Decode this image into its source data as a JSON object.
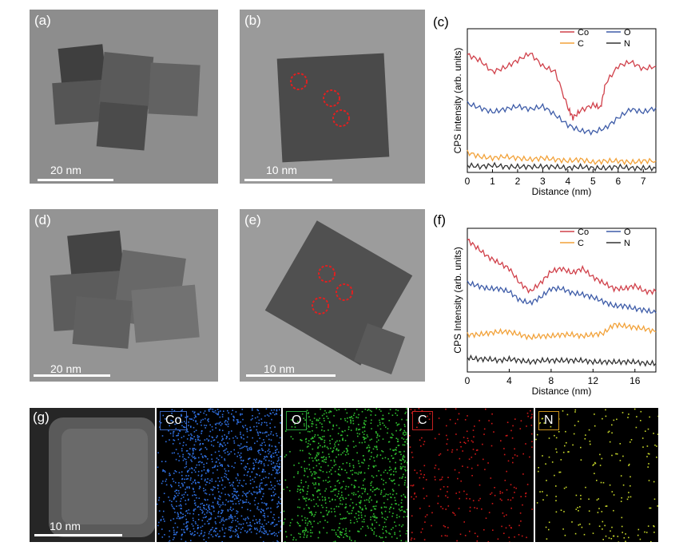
{
  "panels": {
    "a": {
      "label": "(a)",
      "scale": "20 nm"
    },
    "b": {
      "label": "(b)",
      "scale": "10 nm"
    },
    "c": {
      "label": "(c)"
    },
    "d": {
      "label": "(d)",
      "scale": "20 nm"
    },
    "e": {
      "label": "(e)",
      "scale": "10 nm"
    },
    "f": {
      "label": "(f)"
    },
    "g": {
      "label": "(g)",
      "scale": "10 nm",
      "maps": [
        {
          "label": "Co",
          "color": "#2f6fe0",
          "border": "#3a63b8"
        },
        {
          "label": "O",
          "color": "#2fbf2f",
          "border": "#2a9d3a"
        },
        {
          "label": "C",
          "color": "#d01818",
          "border": "#c42020"
        },
        {
          "label": "N",
          "color": "#c8d82a",
          "border": "#c8901a"
        }
      ]
    }
  },
  "colors": {
    "Co": "#d0404a",
    "O": "#3e5ca8",
    "C": "#f2a23a",
    "N": "#333333"
  },
  "chart_data": [
    {
      "type": "line",
      "panel": "(c)",
      "xlabel": "Distance (nm)",
      "ylabel": "CPS intensity (arb. units)",
      "xlim": [
        0,
        7.5
      ],
      "ylim": [
        0,
        1
      ],
      "xticks": [
        "0",
        "1",
        "2",
        "3",
        "4",
        "5",
        "6",
        "7"
      ],
      "legend_position": "top-right",
      "legend": [
        "Co",
        "O",
        "C",
        "N"
      ],
      "series": [
        {
          "name": "Co",
          "x": [
            0,
            0.5,
            1,
            1.5,
            2,
            2.5,
            3,
            3.5,
            4,
            4.2,
            4.5,
            5,
            5.3,
            5.5,
            6,
            6.5,
            7,
            7.5
          ],
          "values": [
            0.82,
            0.78,
            0.7,
            0.73,
            0.78,
            0.83,
            0.74,
            0.7,
            0.45,
            0.38,
            0.43,
            0.47,
            0.45,
            0.62,
            0.74,
            0.77,
            0.72,
            0.74
          ]
        },
        {
          "name": "O",
          "x": [
            0,
            0.5,
            1,
            1.5,
            2,
            2.5,
            3,
            3.5,
            4,
            4.5,
            5,
            5.5,
            6,
            6.5,
            7,
            7.5
          ],
          "values": [
            0.48,
            0.45,
            0.42,
            0.44,
            0.46,
            0.44,
            0.46,
            0.4,
            0.33,
            0.29,
            0.28,
            0.31,
            0.38,
            0.44,
            0.42,
            0.45
          ]
        },
        {
          "name": "C",
          "x": [
            0,
            0.5,
            1,
            1.5,
            2,
            2.5,
            3,
            3.5,
            4,
            4.5,
            5,
            5.5,
            6,
            6.5,
            7,
            7.5
          ],
          "values": [
            0.14,
            0.11,
            0.1,
            0.11,
            0.1,
            0.09,
            0.1,
            0.09,
            0.08,
            0.09,
            0.07,
            0.08,
            0.08,
            0.07,
            0.08,
            0.08
          ]
        },
        {
          "name": "N",
          "x": [
            0,
            0.5,
            1,
            1.5,
            2,
            2.5,
            3,
            3.5,
            4,
            4.5,
            5,
            5.5,
            6,
            6.5,
            7,
            7.5
          ],
          "values": [
            0.05,
            0.04,
            0.05,
            0.04,
            0.04,
            0.04,
            0.04,
            0.04,
            0.03,
            0.04,
            0.03,
            0.03,
            0.04,
            0.03,
            0.03,
            0.03
          ]
        }
      ]
    },
    {
      "type": "line",
      "panel": "(f)",
      "xlabel": "Distance (nm)",
      "ylabel": "CPS Intensity (arb. units)",
      "xlim": [
        0,
        18
      ],
      "ylim": [
        0,
        1
      ],
      "xticks": [
        "0",
        "4",
        "8",
        "12",
        "16"
      ],
      "legend_position": "top-right",
      "legend": [
        "Co",
        "O",
        "C",
        "N"
      ],
      "series": [
        {
          "name": "Co",
          "x": [
            0,
            1,
            2,
            3,
            4,
            5,
            6,
            7,
            8,
            9,
            10,
            11,
            12,
            13,
            14,
            15,
            16,
            17,
            18
          ],
          "values": [
            0.92,
            0.86,
            0.8,
            0.76,
            0.72,
            0.62,
            0.56,
            0.62,
            0.7,
            0.72,
            0.69,
            0.72,
            0.66,
            0.62,
            0.58,
            0.58,
            0.6,
            0.56,
            0.56
          ]
        },
        {
          "name": "O",
          "x": [
            0,
            1,
            2,
            3,
            4,
            5,
            6,
            7,
            8,
            9,
            10,
            11,
            12,
            13,
            14,
            15,
            16,
            17,
            18
          ],
          "values": [
            0.62,
            0.6,
            0.58,
            0.58,
            0.56,
            0.5,
            0.48,
            0.52,
            0.58,
            0.58,
            0.55,
            0.54,
            0.52,
            0.49,
            0.46,
            0.46,
            0.44,
            0.43,
            0.41
          ]
        },
        {
          "name": "C",
          "x": [
            0,
            1,
            2,
            3,
            4,
            5,
            6,
            7,
            8,
            9,
            10,
            11,
            12,
            13,
            14,
            15,
            16,
            17,
            18
          ],
          "values": [
            0.26,
            0.26,
            0.27,
            0.28,
            0.28,
            0.26,
            0.24,
            0.25,
            0.25,
            0.26,
            0.26,
            0.25,
            0.26,
            0.27,
            0.33,
            0.32,
            0.31,
            0.3,
            0.28
          ]
        },
        {
          "name": "N",
          "x": [
            0,
            1,
            2,
            3,
            4,
            5,
            6,
            7,
            8,
            9,
            10,
            11,
            12,
            13,
            14,
            15,
            16,
            17,
            18
          ],
          "values": [
            0.1,
            0.09,
            0.09,
            0.08,
            0.09,
            0.08,
            0.07,
            0.08,
            0.08,
            0.08,
            0.08,
            0.08,
            0.07,
            0.07,
            0.07,
            0.07,
            0.07,
            0.06,
            0.06
          ]
        }
      ]
    }
  ]
}
